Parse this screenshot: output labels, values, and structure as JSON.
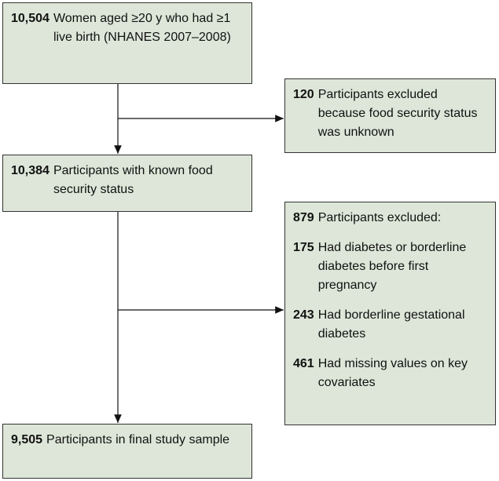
{
  "start": {
    "count": "10,504",
    "text": "Women aged ≥20 y who had ≥1 live birth (NHANES 2007–2008)"
  },
  "exclusion_1": {
    "count": "120",
    "text": "Participants excluded because food security status was unknown"
  },
  "known": {
    "count": "10,384",
    "text": "Participants with known food security status"
  },
  "exclusion_2": {
    "count": "879",
    "text": "Participants excluded:",
    "items": [
      {
        "count": "175",
        "text": "Had diabetes or borderline diabetes before first pregnancy"
      },
      {
        "count": "243",
        "text": "Had borderline gestational diabetes"
      },
      {
        "count": "461",
        "text": "Had missing values on key covariates"
      }
    ]
  },
  "final": {
    "count": "9,505",
    "text": "Participants in final study sample"
  }
}
